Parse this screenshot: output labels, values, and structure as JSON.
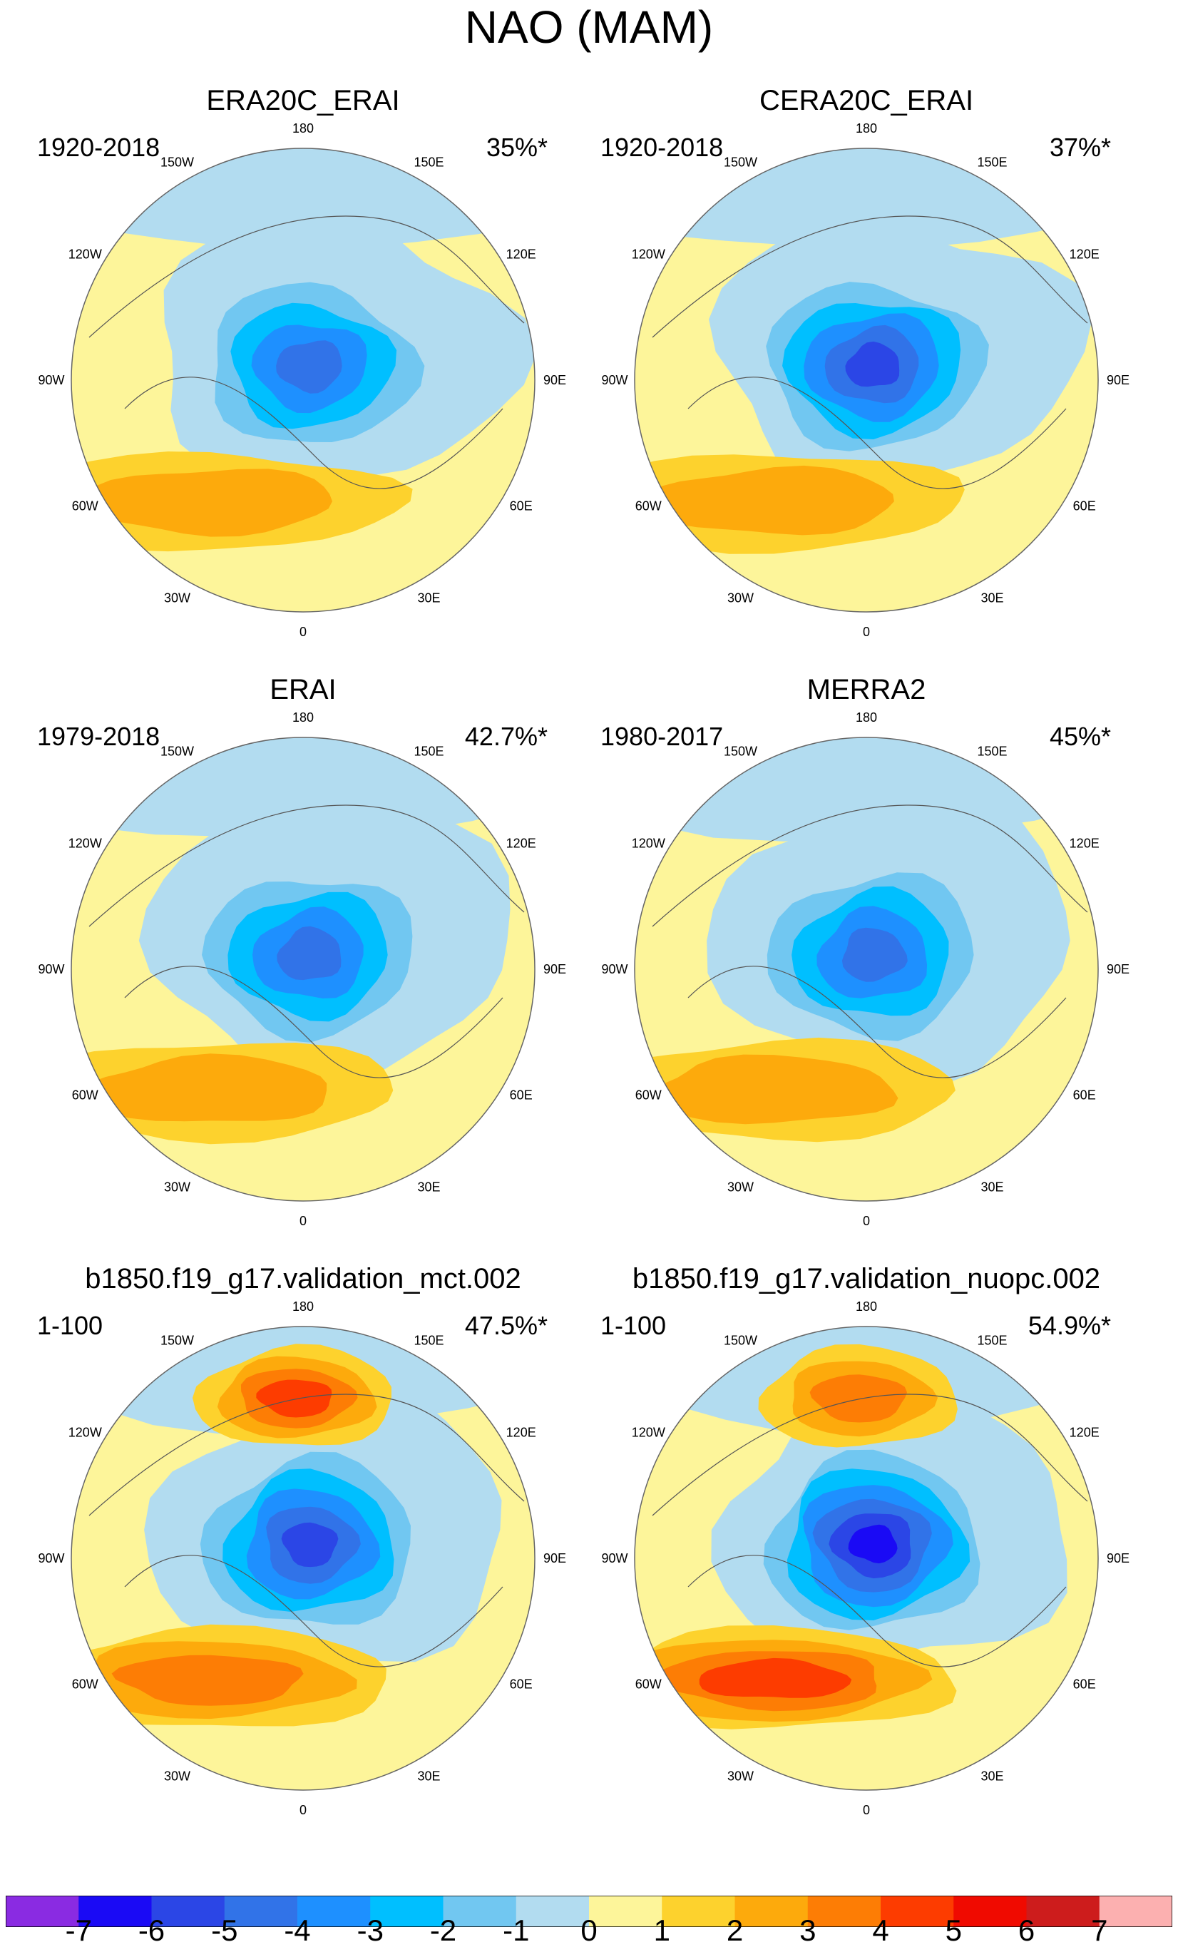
{
  "title": "NAO (MAM)",
  "panels": [
    {
      "title": "ERA20C_ERAI",
      "period": "1920-2018",
      "variance": "35%*",
      "variant": 0,
      "nh_strength": 4,
      "atl_strength": 2,
      "pac_strength": 0
    },
    {
      "title": "CERA20C_ERAI",
      "period": "1920-2018",
      "variance": "37%*",
      "variant": 1,
      "nh_strength": 5,
      "atl_strength": 2,
      "pac_strength": 0
    },
    {
      "title": "ERAI",
      "period": "1979-2018",
      "variance": "42.7%*",
      "variant": 2,
      "nh_strength": 4,
      "atl_strength": 2,
      "pac_strength": 0
    },
    {
      "title": "MERRA2",
      "period": "1980-2017",
      "variance": "45%*",
      "variant": 3,
      "nh_strength": 4,
      "atl_strength": 2,
      "pac_strength": 0
    },
    {
      "title": "b1850.f19_g17.validation_mct.002",
      "period": "1-100",
      "variance": "47.5%*",
      "variant": 4,
      "nh_strength": 5,
      "atl_strength": 3,
      "pac_strength": 4
    },
    {
      "title": "b1850.f19_g17.validation_nuopc.002",
      "period": "1-100",
      "variance": "54.9%*",
      "variant": 5,
      "nh_strength": 6,
      "atl_strength": 4,
      "pac_strength": 3
    }
  ],
  "longitude_labels": [
    "180",
    "150E",
    "120E",
    "90E",
    "60E",
    "30E",
    "0",
    "30W",
    "60W",
    "90W",
    "120W",
    "150W"
  ],
  "colorbar": {
    "labels": [
      "-7",
      "-6",
      "-5",
      "-4",
      "-3",
      "-2",
      "-1",
      "0",
      "1",
      "2",
      "3",
      "4",
      "5",
      "6",
      "7"
    ],
    "colors": [
      "#8a2be2",
      "#1a0af5",
      "#2b46e6",
      "#3173e8",
      "#1e90ff",
      "#00bfff",
      "#71c7f1",
      "#b2dcf0",
      "#fdf59a",
      "#fdd22d",
      "#fdaa0c",
      "#fd7d05",
      "#fd3c00",
      "#f00a00",
      "#cd1c1c",
      "#fcb0b0"
    ]
  }
}
